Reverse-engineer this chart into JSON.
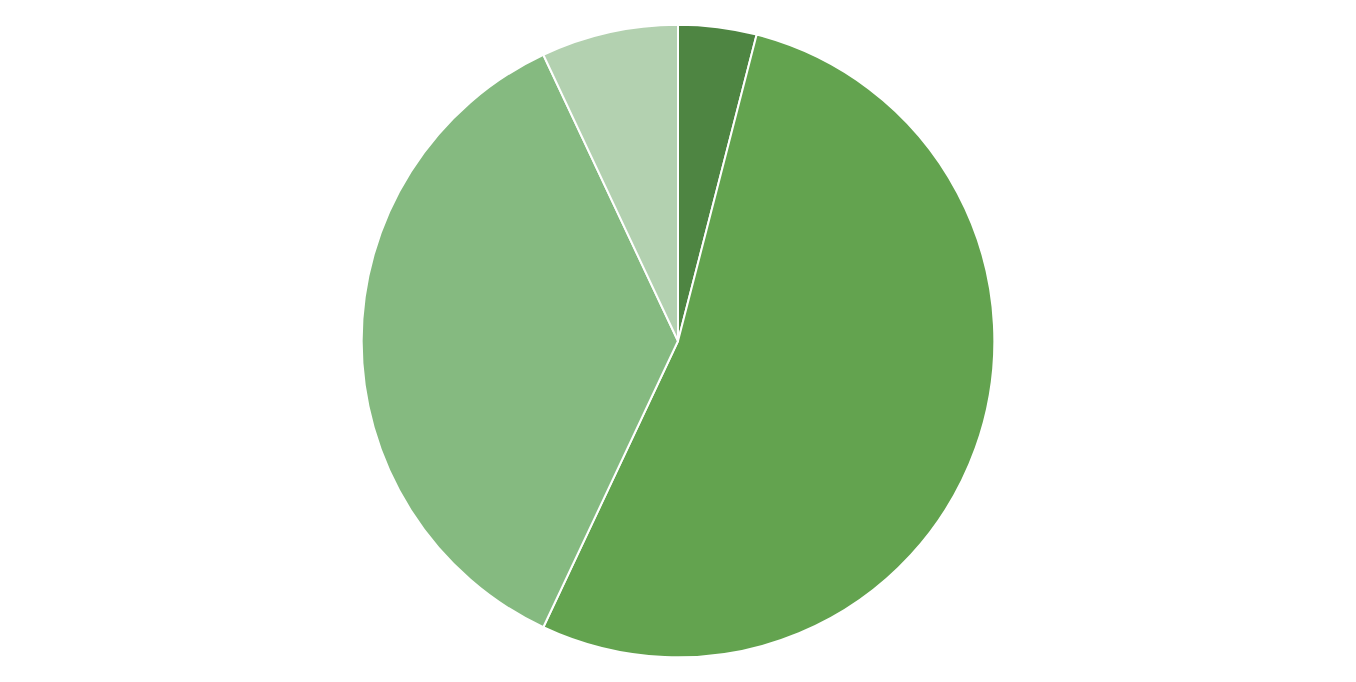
{
  "chart_data": {
    "type": "pie",
    "categories": [
      null,
      null,
      null,
      null
    ],
    "values": [
      4,
      53,
      36,
      7
    ],
    "colors": [
      "#4e8542",
      "#63a34f",
      "#85ba80",
      "#b3d1b0"
    ]
  }
}
